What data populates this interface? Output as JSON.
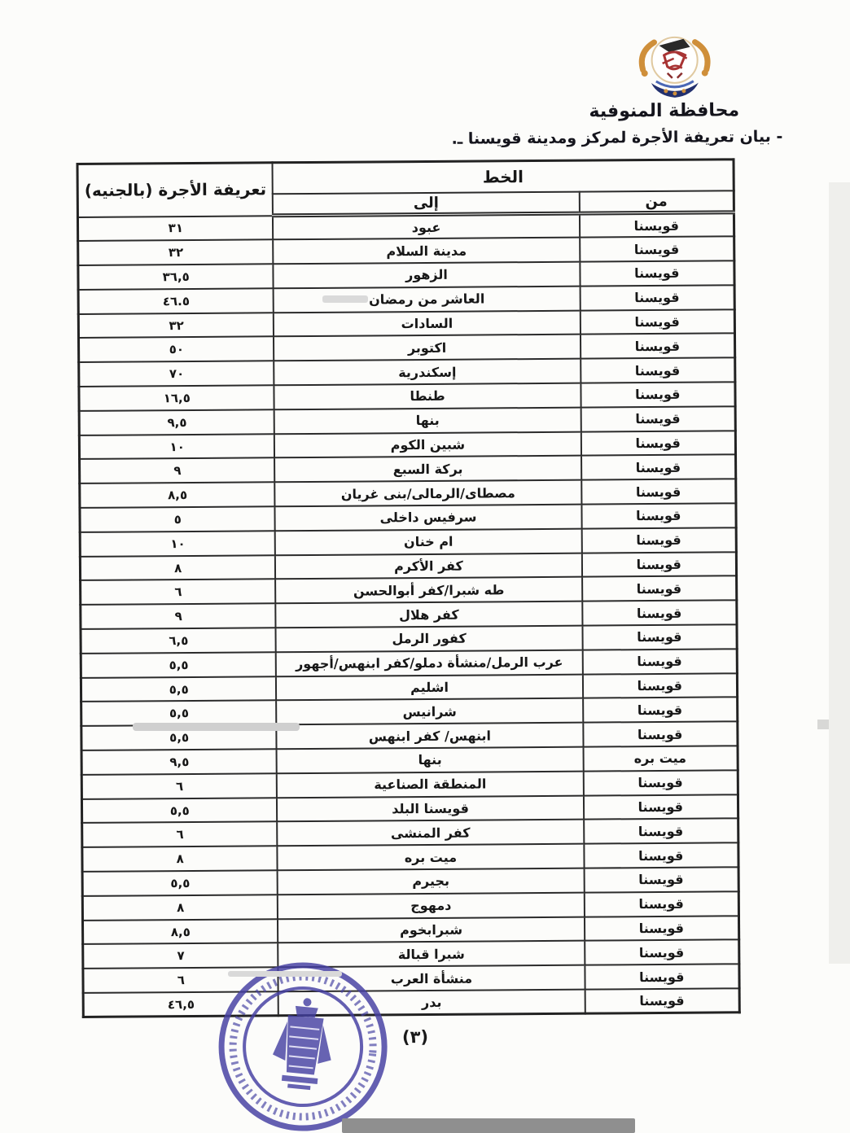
{
  "page": {
    "title": "محافظة المنوفية",
    "subtitle": "- بيان تعريفة الأجرة لمركز ومدينة قويسنا ـ.",
    "page_number": "(٣)",
    "direction": "rtl"
  },
  "icons": {
    "governorate_logo": "menoufia-governorate-emblem",
    "official_stamp": "blue-circular-eagle-seal"
  },
  "colors": {
    "text": "#1b1b1b",
    "stamp_blue": "#4540a2",
    "logo_gold": "#cf8f3a",
    "logo_red": "#a83434",
    "logo_navy": "#22306e"
  },
  "table": {
    "headers": {
      "line": "الخط",
      "from": "من",
      "to": "إلى",
      "fare": "تعريفة الأجرة (بالجنيه)"
    },
    "rows": [
      {
        "from": "قويسنا",
        "to": "عبود",
        "fare": "٣١"
      },
      {
        "from": "قويسنا",
        "to": "مدينة السلام",
        "fare": "٣٢"
      },
      {
        "from": "قويسنا",
        "to": "الزهور",
        "fare": "٣٦,٥"
      },
      {
        "from": "قويسنا",
        "to": "العاشر من رمضان",
        "fare": "٤٦.٥"
      },
      {
        "from": "قويسنا",
        "to": "السادات",
        "fare": "٣٢"
      },
      {
        "from": "قويسنا",
        "to": "اكتوبر",
        "fare": "٥٠"
      },
      {
        "from": "قويسنا",
        "to": "إسكندرية",
        "fare": "٧٠"
      },
      {
        "from": "قويسنا",
        "to": "طنطا",
        "fare": "١٦,٥"
      },
      {
        "from": "قويسنا",
        "to": "بنها",
        "fare": "٩,٥"
      },
      {
        "from": "قويسنا",
        "to": "شبين الكوم",
        "fare": "١٠"
      },
      {
        "from": "قويسنا",
        "to": "بركة السبع",
        "fare": "٩"
      },
      {
        "from": "قويسنا",
        "to": "مصطاى/الرمالى/بنى غريان",
        "fare": "٨,٥"
      },
      {
        "from": "قويسنا",
        "to": "سرفيس داخلى",
        "fare": "٥"
      },
      {
        "from": "قويسنا",
        "to": "ام خنان",
        "fare": "١٠"
      },
      {
        "from": "قويسنا",
        "to": "كفر الأكرم",
        "fare": "٨"
      },
      {
        "from": "قويسنا",
        "to": "طه شبرا/كفر أبوالحسن",
        "fare": "٦"
      },
      {
        "from": "قويسنا",
        "to": "كفر هلال",
        "fare": "٩"
      },
      {
        "from": "قويسنا",
        "to": "كفور الرمل",
        "fare": "٦,٥"
      },
      {
        "from": "قويسنا",
        "to": "عرب الرمل/منشأة دملو/كفر ابنهس/أجهور",
        "fare": "٥,٥"
      },
      {
        "from": "قويسنا",
        "to": "اشليم",
        "fare": "٥,٥"
      },
      {
        "from": "قويسنا",
        "to": "شرانيس",
        "fare": "٥,٥"
      },
      {
        "from": "قويسنا",
        "to": "ابنهس/ كفر ابنهس",
        "fare": "٥,٥"
      },
      {
        "from": "ميت بره",
        "to": "بنها",
        "fare": "٩,٥"
      },
      {
        "from": "قويسنا",
        "to": "المنطقة الصناعية",
        "fare": "٦"
      },
      {
        "from": "قويسنا",
        "to": "قويسنا البلد",
        "fare": "٥,٥"
      },
      {
        "from": "قويسنا",
        "to": "كفر المنشى",
        "fare": "٦"
      },
      {
        "from": "قويسنا",
        "to": "ميت بره",
        "fare": "٨"
      },
      {
        "from": "قويسنا",
        "to": "بجيرم",
        "fare": "٥,٥"
      },
      {
        "from": "قويسنا",
        "to": "دمهوج",
        "fare": "٨"
      },
      {
        "from": "قويسنا",
        "to": "شبرابخوم",
        "fare": "٨,٥"
      },
      {
        "from": "قويسنا",
        "to": "شبرا قبالة",
        "fare": "٧"
      },
      {
        "from": "قويسنا",
        "to": "منشأة العرب",
        "fare": "٦"
      },
      {
        "from": "قويسنا",
        "to": "بدر",
        "fare": "٤٦,٥"
      }
    ]
  }
}
